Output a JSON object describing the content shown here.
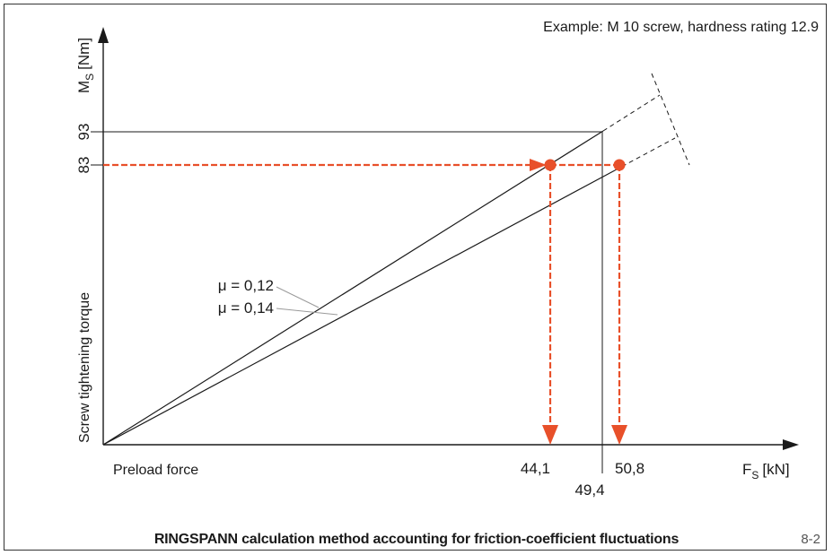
{
  "title": "Example: M 10 screw, hardness rating 12.9",
  "caption": "RINGSPANN calculation method accounting for friction-coefficient fluctuations",
  "page_number": "8-2",
  "colors": {
    "line": "#1a1a1a",
    "accent": "#e8502a",
    "guide": "#9a9a9a"
  },
  "y_axis": {
    "symbol": "M",
    "subscript": "S",
    "unit": "[Nm]",
    "description": "Screw tightening torque"
  },
  "x_axis": {
    "symbol": "F",
    "subscript": "S",
    "unit": "[kN]",
    "description": "Preload force"
  },
  "ticks": {
    "y": [
      {
        "label": "93",
        "value": 93
      },
      {
        "label": "83",
        "value": 83
      }
    ],
    "x": [
      {
        "label": "44,1",
        "value": 44.1
      },
      {
        "label": "49,4",
        "value": 49.4
      },
      {
        "label": "50,8",
        "value": 50.8
      }
    ]
  },
  "curves": [
    {
      "label": "μ = 0,12",
      "mu": 0.12,
      "points": [
        [
          0,
          0
        ],
        [
          50.8,
          83
        ]
      ]
    },
    {
      "label": "μ = 0,14",
      "mu": 0.14,
      "points": [
        [
          0,
          0
        ],
        [
          44.1,
          83
        ]
      ]
    }
  ],
  "reference_point": {
    "x": 49.4,
    "y": 93
  },
  "markers": [
    {
      "x": 44.1,
      "y": 83
    },
    {
      "x": 50.8,
      "y": 83
    }
  ]
}
